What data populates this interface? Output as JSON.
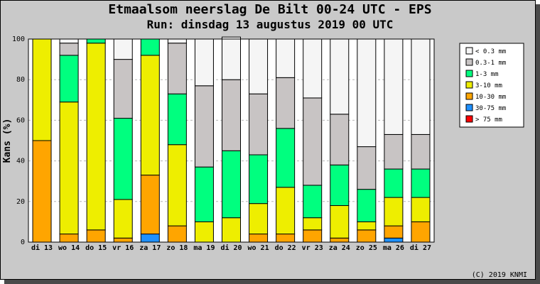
{
  "chart_data": {
    "type": "bar",
    "stacked": true,
    "title": "Etmaalsom neerslag De Bilt 00-24 UTC - EPS",
    "subtitle": "Run: dinsdag 13 augustus 2019   00 UTC",
    "ylabel": "Kans (%)",
    "ylim": [
      0,
      100
    ],
    "yticks": [
      "0",
      "20",
      "40",
      "60",
      "80",
      "100"
    ],
    "grid": true,
    "legend_position": "right",
    "copyright": "(C) 2019 KNMI",
    "categories": [
      "di 13",
      "wo 14",
      "do 15",
      "vr 16",
      "za 17",
      "zo 18",
      "ma 19",
      "di 20",
      "wo 21",
      "do 22",
      "vr 23",
      "za 24",
      "zo 25",
      "ma 26",
      "di 27"
    ],
    "series": [
      {
        "name": "> 75 mm",
        "color": "#ff0000",
        "values": [
          0,
          0,
          0,
          0,
          0,
          0,
          0,
          0,
          0,
          0,
          0,
          0,
          0,
          0,
          0
        ]
      },
      {
        "name": "30-75 mm",
        "color": "#1e90ff",
        "values": [
          0,
          0,
          0,
          0,
          4,
          0,
          0,
          0,
          0,
          0,
          0,
          0,
          0,
          2,
          0
        ]
      },
      {
        "name": "10-30 mm",
        "color": "#ffa500",
        "values": [
          50,
          4,
          6,
          2,
          29,
          8,
          0,
          0,
          4,
          4,
          6,
          2,
          6,
          6,
          10
        ]
      },
      {
        "name": "3-10 mm",
        "color": "#eeee00",
        "values": [
          50,
          65,
          92,
          19,
          59,
          40,
          10,
          12,
          15,
          23,
          6,
          16,
          4,
          14,
          12
        ]
      },
      {
        "name": "1-3 mm",
        "color": "#00ff7f",
        "values": [
          0,
          23,
          2,
          40,
          8,
          25,
          27,
          33,
          24,
          29,
          16,
          20,
          16,
          14,
          14
        ]
      },
      {
        "name": "0.3-1 mm",
        "color": "#c8c4c4",
        "values": [
          0,
          6,
          0,
          29,
          0,
          25,
          40,
          35,
          30,
          25,
          43,
          25,
          21,
          17,
          17
        ]
      },
      {
        "name": "< 0.3 mm",
        "color": "#f5f5f5",
        "values": [
          0,
          2,
          0,
          10,
          0,
          2,
          23,
          21,
          27,
          19,
          29,
          37,
          53,
          47,
          47
        ]
      }
    ],
    "legend_order": [
      "< 0.3 mm",
      "0.3-1 mm",
      "1-3 mm",
      "3-10 mm",
      "10-30 mm",
      "30-75 mm",
      "> 75 mm"
    ]
  }
}
